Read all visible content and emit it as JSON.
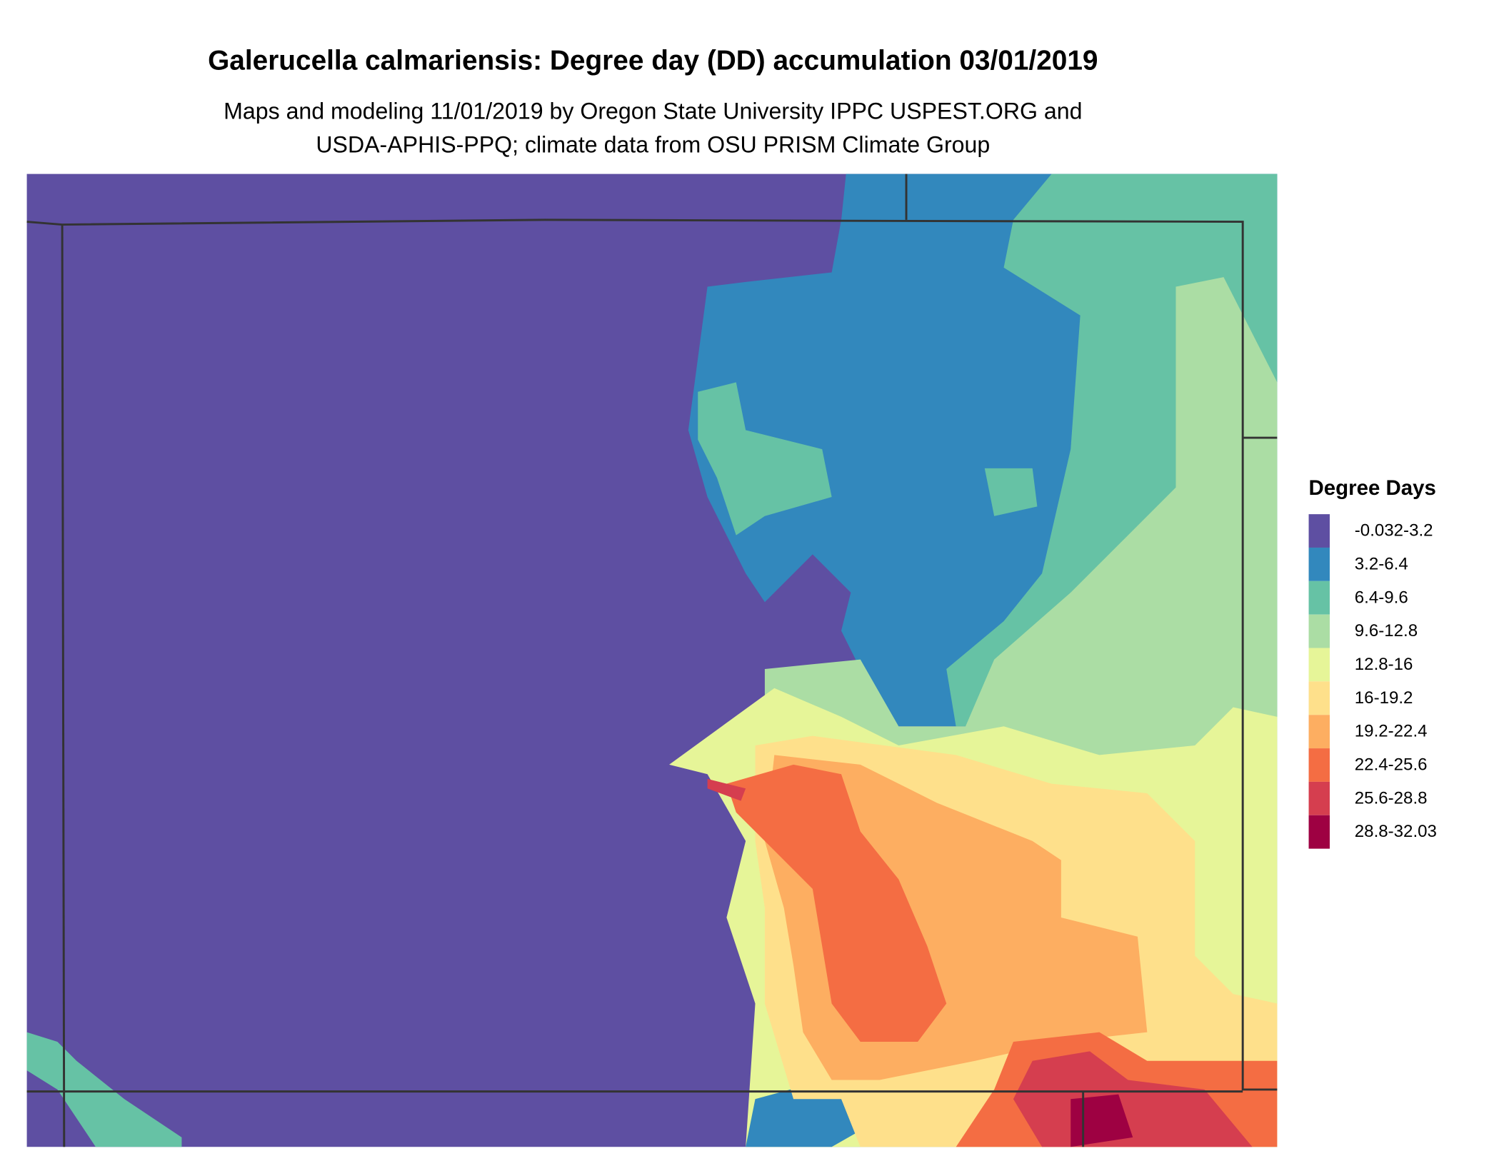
{
  "header": {
    "title": "Galerucella calmariensis: Degree day (DD) accumulation 03/01/2019",
    "subtitle_lines": [
      "Maps and modeling 11/01/2019 by Oregon State University IPPC USPEST.ORG and",
      "USDA-APHIS-PPQ; climate data from OSU PRISM Climate Group"
    ]
  },
  "legend": {
    "title": "Degree Days",
    "items": [
      {
        "label": "-0.032-3.2",
        "color": "#5e4fa2"
      },
      {
        "label": "3.2-6.4",
        "color": "#3288bd"
      },
      {
        "label": "6.4-9.6",
        "color": "#66c2a5"
      },
      {
        "label": "9.6-12.8",
        "color": "#abdda4"
      },
      {
        "label": "12.8-16",
        "color": "#e6f598"
      },
      {
        "label": "16-19.2",
        "color": "#fee08b"
      },
      {
        "label": "19.2-22.4",
        "color": "#fdae61"
      },
      {
        "label": "22.4-25.6",
        "color": "#f46d43"
      },
      {
        "label": "25.6-28.8",
        "color": "#d53e4f"
      },
      {
        "label": "28.8-32.03",
        "color": "#9e0142"
      }
    ]
  }
}
